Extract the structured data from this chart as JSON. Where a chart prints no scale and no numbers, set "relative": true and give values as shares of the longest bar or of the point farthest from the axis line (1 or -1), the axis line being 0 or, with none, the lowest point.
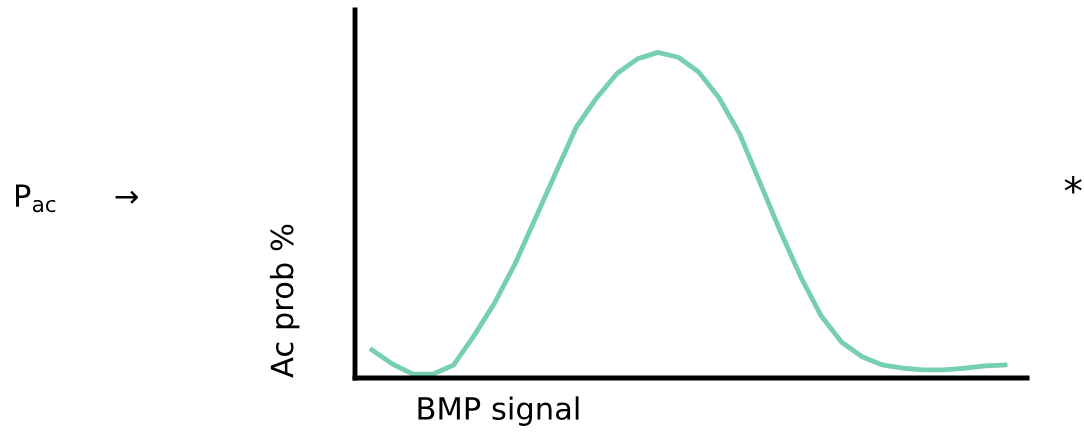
{
  "chart_data": {
    "type": "line",
    "relative": true,
    "xlabel": "BMP signal",
    "ylabel": "Ac prob %",
    "annotations": [
      "P$_{ac}$",
      "→",
      "*"
    ],
    "categories": [
      null,
      null,
      null,
      null,
      null,
      null,
      null,
      null,
      null,
      null,
      null,
      null,
      null,
      null,
      null,
      null,
      null,
      null,
      null,
      null,
      null,
      null,
      null,
      null,
      null,
      null,
      null,
      null,
      null,
      null,
      null,
      null
    ],
    "series": [
      {
        "color": "#76cfb4",
        "values": [
          0.086,
          0.043,
          0.012,
          0.012,
          0.04,
          0.13,
          0.23,
          0.35,
          0.49,
          0.63,
          0.77,
          0.86,
          0.935,
          0.98,
          1.0,
          0.985,
          0.94,
          0.86,
          0.75,
          0.6,
          0.45,
          0.31,
          0.19,
          0.11,
          0.065,
          0.04,
          0.03,
          0.025,
          0.025,
          0.03,
          0.037,
          0.04
        ]
      }
    ],
    "legend": false,
    "marker": "none",
    "line_style": "solid"
  }
}
